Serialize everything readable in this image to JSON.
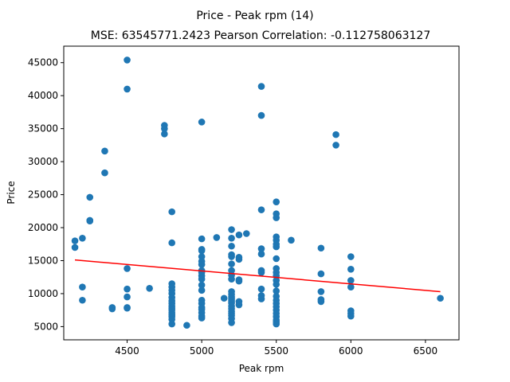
{
  "chart_data": {
    "type": "scatter",
    "title": "Price - Peak rpm (14)",
    "subtitle": "MSE: 63545771.2423 Pearson Correlation: -0.112758063127",
    "xlabel": "Peak rpm",
    "ylabel": "Price",
    "xlim": [
      4075,
      6725
    ],
    "ylim": [
      3000,
      47500
    ],
    "xticks": [
      4500,
      5000,
      5500,
      6000,
      6500
    ],
    "yticks": [
      5000,
      10000,
      15000,
      20000,
      25000,
      30000,
      35000,
      40000,
      45000
    ],
    "grid": false,
    "colors": {
      "points": "#1f77b4",
      "fit_line": "#ff0000"
    },
    "fit_line": {
      "x": [
        4150,
        6600
      ],
      "y": [
        15100,
        10300
      ]
    },
    "points": [
      [
        4150,
        17000
      ],
      [
        4150,
        18000
      ],
      [
        4200,
        18400
      ],
      [
        4200,
        11000
      ],
      [
        4200,
        9000
      ],
      [
        4250,
        24600
      ],
      [
        4250,
        21100
      ],
      [
        4250,
        21000
      ],
      [
        4350,
        31600
      ],
      [
        4350,
        28300
      ],
      [
        4400,
        7900
      ],
      [
        4400,
        7700
      ],
      [
        4500,
        45400
      ],
      [
        4500,
        41000
      ],
      [
        4500,
        13800
      ],
      [
        4500,
        10700
      ],
      [
        4500,
        9500
      ],
      [
        4500,
        7900
      ],
      [
        4500,
        7800
      ],
      [
        4650,
        10800
      ],
      [
        4750,
        35500
      ],
      [
        4750,
        35000
      ],
      [
        4750,
        34200
      ],
      [
        4800,
        22400
      ],
      [
        4800,
        17700
      ],
      [
        4800,
        11500
      ],
      [
        4800,
        11000
      ],
      [
        4800,
        10500
      ],
      [
        4800,
        10000
      ],
      [
        4800,
        9400
      ],
      [
        4800,
        8900
      ],
      [
        4800,
        8500
      ],
      [
        4800,
        8100
      ],
      [
        4800,
        7800
      ],
      [
        4800,
        7500
      ],
      [
        4800,
        7100
      ],
      [
        4800,
        6800
      ],
      [
        4800,
        6500
      ],
      [
        4800,
        6100
      ],
      [
        4800,
        5400
      ],
      [
        4900,
        5200
      ],
      [
        5000,
        36000
      ],
      [
        5000,
        18300
      ],
      [
        5000,
        16700
      ],
      [
        5000,
        16500
      ],
      [
        5000,
        15600
      ],
      [
        5000,
        14900
      ],
      [
        5000,
        14400
      ],
      [
        5000,
        13500
      ],
      [
        5000,
        13200
      ],
      [
        5000,
        12700
      ],
      [
        5000,
        12200
      ],
      [
        5000,
        11300
      ],
      [
        5000,
        10500
      ],
      [
        5000,
        9000
      ],
      [
        5000,
        8500
      ],
      [
        5000,
        7900
      ],
      [
        5000,
        7600
      ],
      [
        5000,
        7100
      ],
      [
        5000,
        6600
      ],
      [
        5000,
        6300
      ],
      [
        5100,
        18500
      ],
      [
        5150,
        9300
      ],
      [
        5200,
        19700
      ],
      [
        5200,
        18400
      ],
      [
        5200,
        17200
      ],
      [
        5200,
        15900
      ],
      [
        5200,
        15600
      ],
      [
        5200,
        14500
      ],
      [
        5200,
        13500
      ],
      [
        5200,
        12800
      ],
      [
        5200,
        12200
      ],
      [
        5200,
        10300
      ],
      [
        5200,
        9900
      ],
      [
        5200,
        9500
      ],
      [
        5200,
        9200
      ],
      [
        5200,
        8900
      ],
      [
        5200,
        8600
      ],
      [
        5200,
        8100
      ],
      [
        5200,
        7700
      ],
      [
        5200,
        7300
      ],
      [
        5200,
        7000
      ],
      [
        5200,
        6700
      ],
      [
        5200,
        6200
      ],
      [
        5200,
        5600
      ],
      [
        5250,
        18900
      ],
      [
        5250,
        15500
      ],
      [
        5250,
        15200
      ],
      [
        5250,
        12100
      ],
      [
        5250,
        11900
      ],
      [
        5250,
        8800
      ],
      [
        5250,
        8300
      ],
      [
        5300,
        19100
      ],
      [
        5400,
        41400
      ],
      [
        5400,
        37000
      ],
      [
        5400,
        22700
      ],
      [
        5400,
        16800
      ],
      [
        5400,
        16000
      ],
      [
        5400,
        13500
      ],
      [
        5400,
        13200
      ],
      [
        5400,
        10700
      ],
      [
        5400,
        9700
      ],
      [
        5400,
        9200
      ],
      [
        5500,
        23900
      ],
      [
        5500,
        22100
      ],
      [
        5500,
        21500
      ],
      [
        5500,
        18600
      ],
      [
        5500,
        18100
      ],
      [
        5500,
        17500
      ],
      [
        5500,
        17100
      ],
      [
        5500,
        15300
      ],
      [
        5500,
        13800
      ],
      [
        5500,
        13200
      ],
      [
        5500,
        12700
      ],
      [
        5500,
        12000
      ],
      [
        5500,
        11400
      ],
      [
        5500,
        10400
      ],
      [
        5500,
        9600
      ],
      [
        5500,
        9000
      ],
      [
        5500,
        8500
      ],
      [
        5500,
        8000
      ],
      [
        5500,
        7500
      ],
      [
        5500,
        7000
      ],
      [
        5500,
        6500
      ],
      [
        5500,
        6000
      ],
      [
        5500,
        5700
      ],
      [
        5500,
        5400
      ],
      [
        5600,
        18100
      ],
      [
        5800,
        16900
      ],
      [
        5800,
        13000
      ],
      [
        5800,
        10300
      ],
      [
        5800,
        9100
      ],
      [
        5800,
        8800
      ],
      [
        5900,
        34100
      ],
      [
        5900,
        32500
      ],
      [
        6000,
        15600
      ],
      [
        6000,
        13700
      ],
      [
        6000,
        12000
      ],
      [
        6000,
        11000
      ],
      [
        6000,
        7400
      ],
      [
        6000,
        7000
      ],
      [
        6000,
        6600
      ],
      [
        6600,
        9300
      ]
    ]
  }
}
